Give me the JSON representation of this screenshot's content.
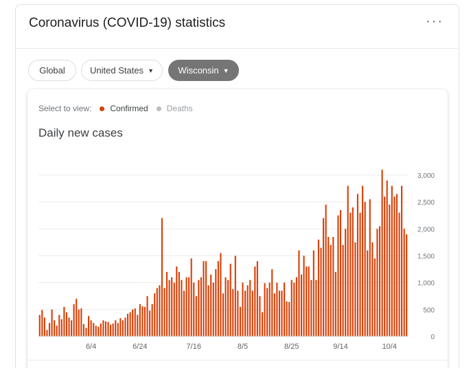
{
  "header": {
    "title": "Coronavirus (COVID-19) statistics",
    "more": "⋮"
  },
  "filters": {
    "global": "Global",
    "us": "United States",
    "state": "Wisconsin",
    "caret": "▼"
  },
  "view": {
    "label": "Select to view:",
    "confirmed": "Confirmed",
    "deaths": "Deaths",
    "confirmed_color": "#d74108",
    "deaths_color": "#bdbdbd"
  },
  "chart_data": {
    "type": "bar",
    "title": "Daily new cases",
    "series_color": "#d74108",
    "yticks": [
      0,
      500,
      1000,
      1500,
      2000,
      2500,
      3000
    ],
    "ytick_labels": [
      "0",
      "500",
      "1,000",
      "1,500",
      "2,000",
      "2,500",
      "3,000"
    ],
    "ylim": [
      0,
      3100
    ],
    "grid": true,
    "xtick_labels": [
      "6/4",
      "6/24",
      "7/16",
      "8/5",
      "8/25",
      "9/14",
      "10/4"
    ],
    "xtick_index": [
      21,
      41,
      63,
      83,
      103,
      123,
      143
    ],
    "values": [
      400,
      490,
      350,
      120,
      250,
      500,
      300,
      200,
      400,
      320,
      550,
      450,
      350,
      300,
      600,
      700,
      500,
      520,
      230,
      160,
      380,
      300,
      250,
      200,
      180,
      240,
      300,
      280,
      270,
      220,
      240,
      300,
      250,
      340,
      300,
      350,
      420,
      450,
      500,
      520,
      400,
      600,
      560,
      550,
      750,
      480,
      600,
      800,
      900,
      950,
      2200,
      900,
      1200,
      1050,
      1100,
      1000,
      1300,
      1200,
      1050,
      850,
      1100,
      1100,
      1450,
      1000,
      750,
      1050,
      1100,
      1400,
      1400,
      950,
      1150,
      1000,
      1250,
      1400,
      1550,
      800,
      1100,
      1050,
      1350,
      880,
      1500,
      850,
      550,
      1000,
      850,
      950,
      1050,
      850,
      1300,
      1400,
      750,
      450,
      990,
      900,
      1000,
      1250,
      800,
      1000,
      850,
      850,
      1000,
      650,
      640,
      1050,
      1000,
      1100,
      1600,
      1150,
      1500,
      1300,
      1300,
      1050,
      1600,
      1050,
      1800,
      1650,
      2200,
      2450,
      1850,
      1700,
      1850,
      1200,
      2250,
      2350,
      1700,
      2000,
      2800,
      2300,
      2400,
      1750,
      2650,
      2300,
      2800,
      2500,
      1600,
      2550,
      1750,
      1450,
      2000,
      2050,
      3100,
      2600,
      2900,
      2450,
      2800,
      2600,
      2650,
      2300,
      2800,
      2000,
      1900
    ]
  }
}
